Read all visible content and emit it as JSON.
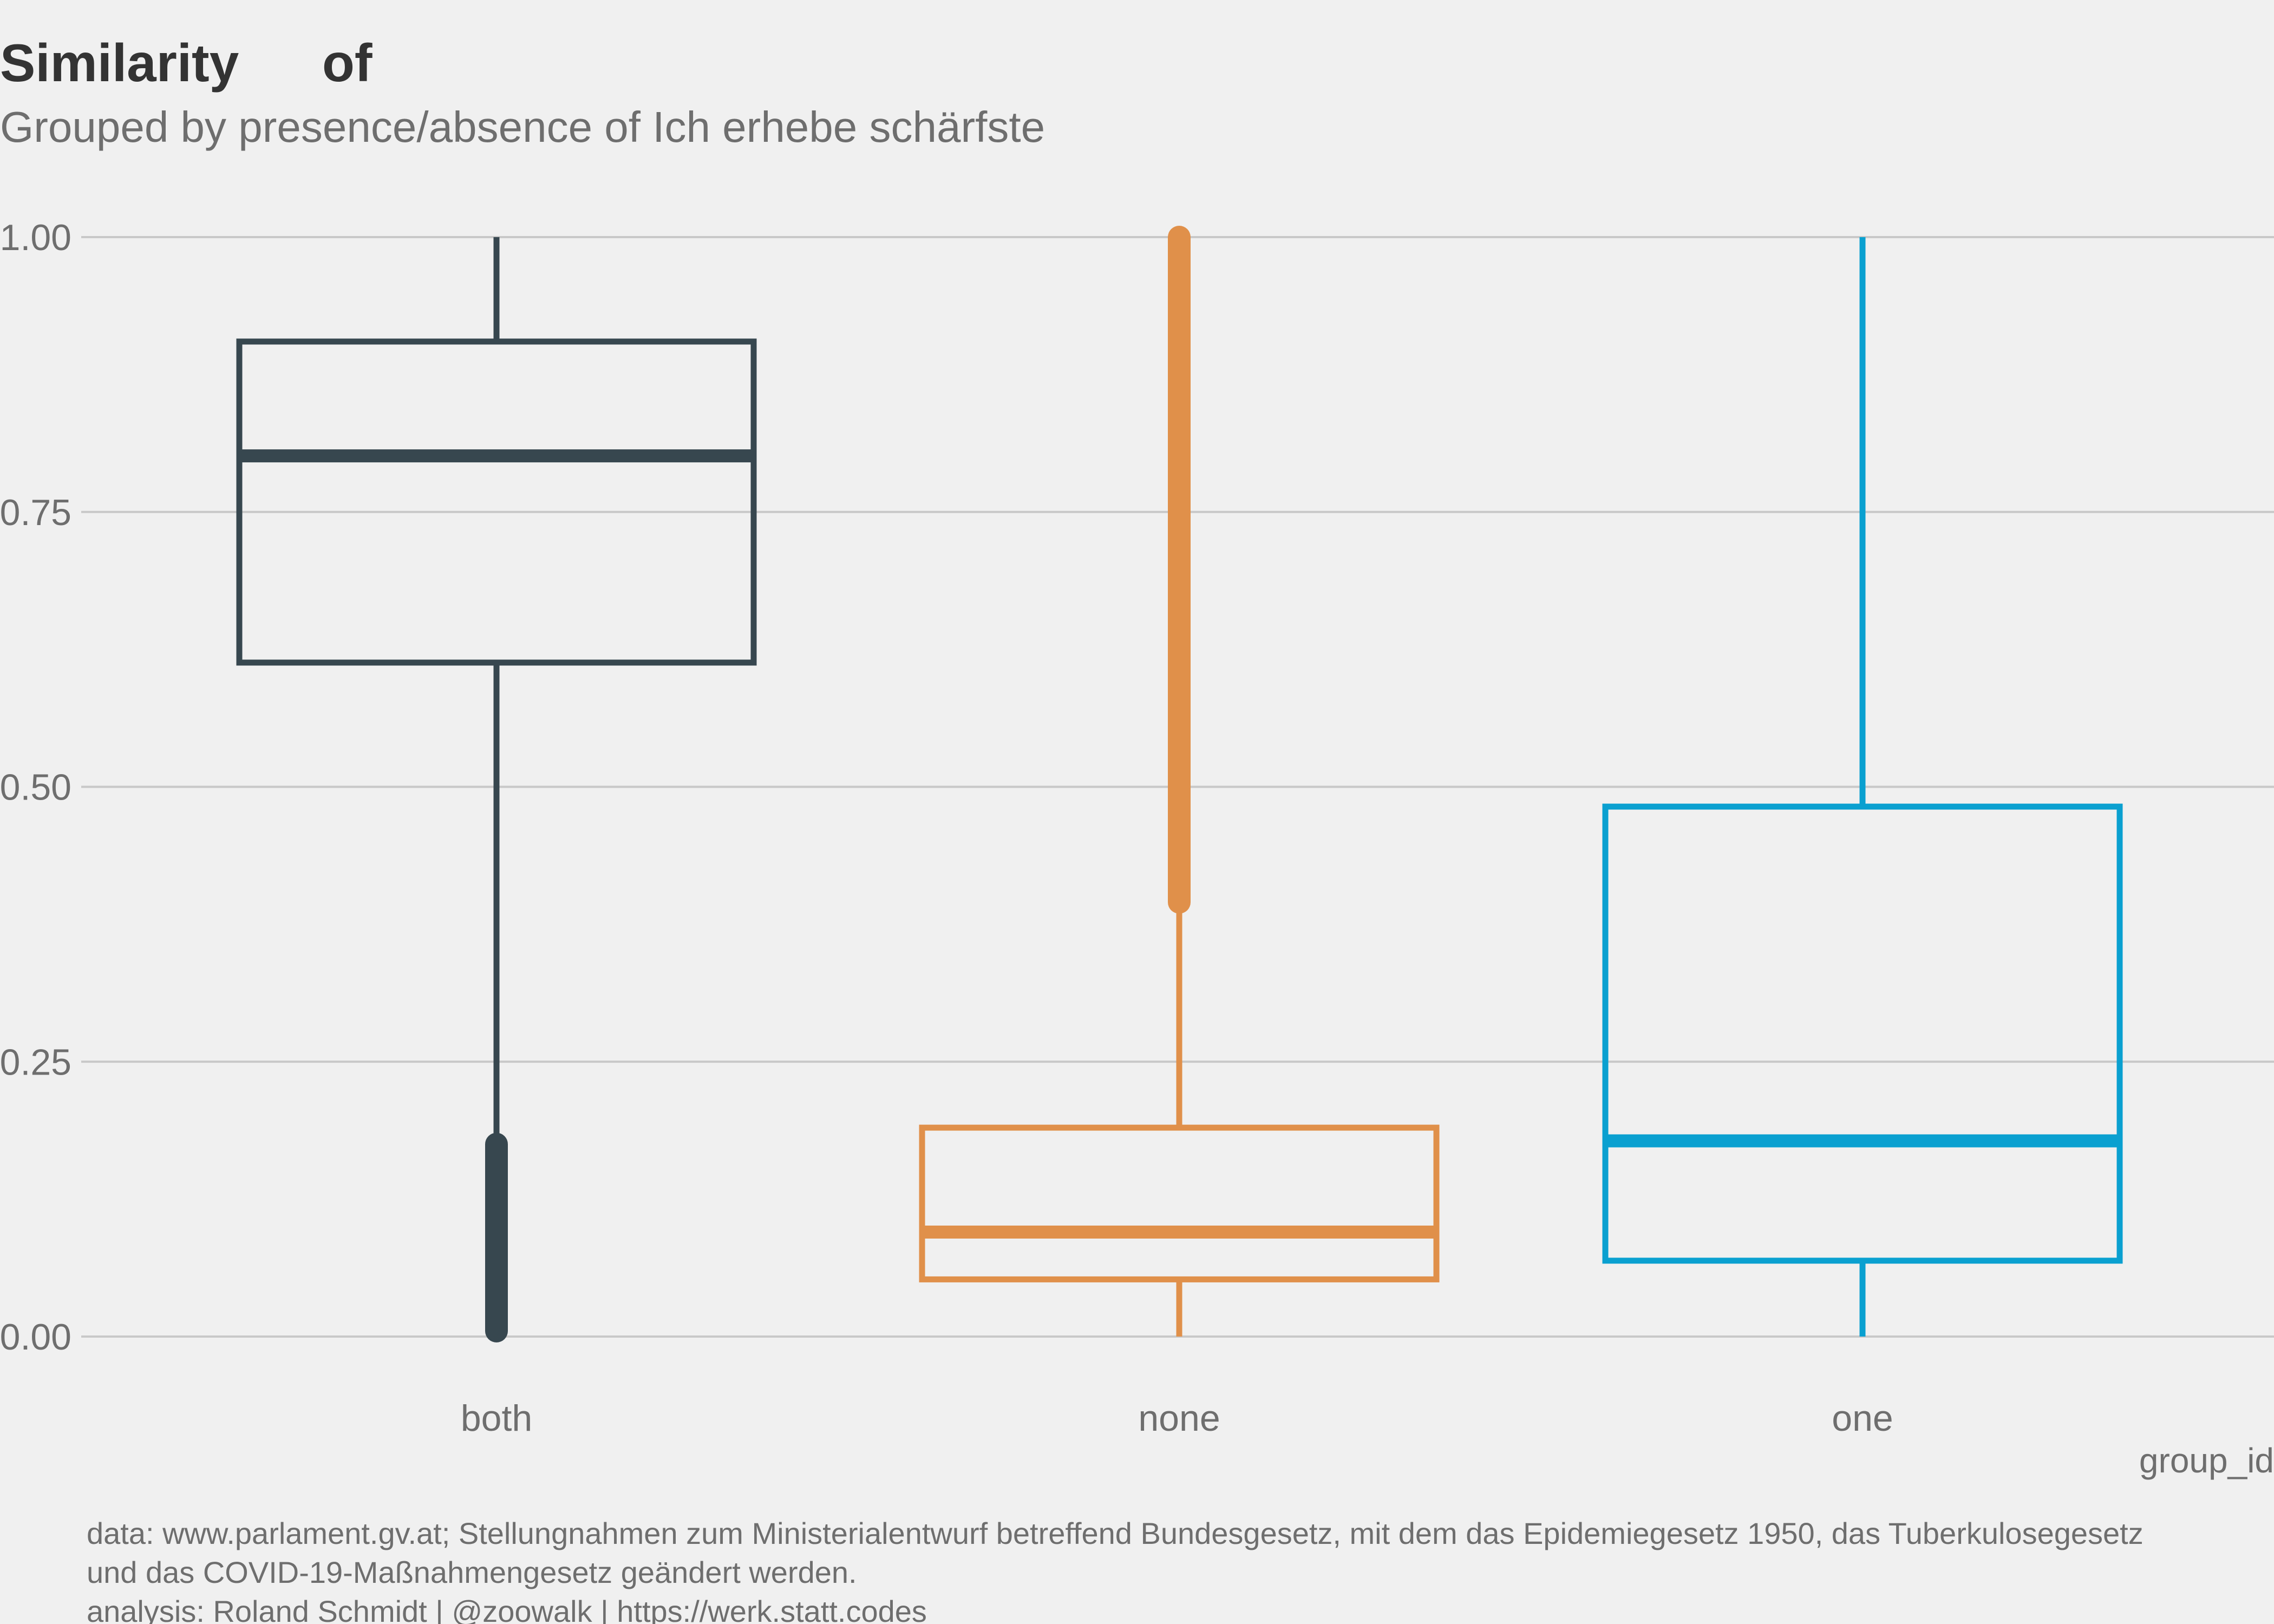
{
  "chart_data": {
    "type": "boxplot",
    "title_words": [
      "Similarity",
      "of"
    ],
    "subtitle": "Grouped by presence/absence of Ich erhebe schärfste",
    "xlabel": "group_id",
    "ylabel": "",
    "ylim": [
      0,
      1
    ],
    "y_ticks": [
      0,
      0.25,
      0.5,
      0.75,
      1
    ],
    "y_tick_labels": [
      "0.00",
      "0.25",
      "0.50",
      "0.75",
      "1.00"
    ],
    "grid": "horizontal",
    "legend": "none",
    "categories": [
      "both",
      "none",
      "one"
    ],
    "boxes": [
      {
        "category": "both",
        "color": "#37474f",
        "q1": 0.613,
        "median": 0.801,
        "q3": 0.905,
        "whisker_low": 0.175,
        "whisker_high": 1.0,
        "outliers_low": [
          0.005,
          0.175
        ],
        "outliers_high": null
      },
      {
        "category": "none",
        "color": "#e0904a",
        "q1": 0.052,
        "median": 0.095,
        "q3": 0.19,
        "whisker_low": 0.0,
        "whisker_high": 0.395,
        "outliers_low": null,
        "outliers_high": [
          0.395,
          1.0
        ]
      },
      {
        "category": "one",
        "color": "#0aa0d0",
        "q1": 0.069,
        "median": 0.178,
        "q3": 0.482,
        "whisker_low": 0.0,
        "whisker_high": 1.0,
        "outliers_low": null,
        "outliers_high": null
      }
    ],
    "caption_lines": [
      "data: www.parlament.gv.at; Stellungnahmen zum Ministerialentwurf betreffend Bundesgesetz, mit dem das Epidemiegesetz 1950, das Tuberkulosegesetz",
      "und das COVID-19-Maßnahmengesetz geändert werden.",
      "analysis: Roland Schmidt | @zoowalk | https://werk.statt.codes"
    ]
  }
}
